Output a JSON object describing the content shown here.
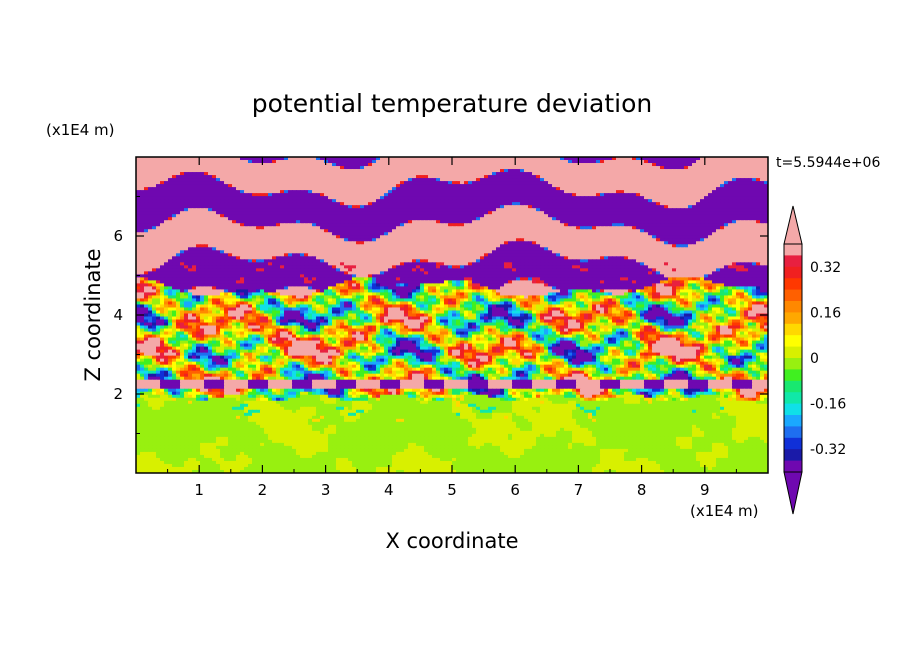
{
  "chart_data": {
    "type": "heatmap",
    "title": "potential temperature deviation",
    "xlabel": "X coordinate",
    "ylabel": "Z coordinate",
    "x_unit": "(x1E4 m)",
    "y_unit": "(x1E4 m)",
    "time_label": "t=5.5944e+06",
    "xlim": [
      0,
      10
    ],
    "ylim": [
      0,
      8
    ],
    "x_ticks": [
      "1",
      "2",
      "3",
      "4",
      "5",
      "6",
      "7",
      "8",
      "9"
    ],
    "y_ticks": [
      "2",
      "4",
      "6"
    ],
    "colorbar": {
      "levels": [
        -0.4,
        -0.36,
        -0.32,
        -0.28,
        -0.24,
        -0.2,
        -0.16,
        -0.12,
        -0.08,
        -0.04,
        0,
        0.04,
        0.08,
        0.12,
        0.16,
        0.2,
        0.24,
        0.28,
        0.32,
        0.36,
        0.4
      ],
      "colors": [
        "#6f08b0",
        "#1a1aa8",
        "#1030d8",
        "#1e6ef0",
        "#1aa8ff",
        "#10e0e8",
        "#10e8a8",
        "#18e870",
        "#40f020",
        "#98f010",
        "#d8f000",
        "#ffff00",
        "#ffd800",
        "#ffa800",
        "#ff8800",
        "#ff6000",
        "#ff3800",
        "#f02020",
        "#e82040",
        "#f4a8a8"
      ],
      "tick_labels": [
        "0.32",
        "0.16",
        "0",
        "-0.16",
        "-0.32"
      ],
      "tick_values": [
        0.32,
        0.16,
        0,
        -0.16,
        -0.32
      ],
      "under_color": "#6f08b0",
      "over_color": "#f4a8a8"
    },
    "regions": [
      {
        "band": "near-surface",
        "z_range": [
          0,
          2
        ],
        "dominant_value": 0.0,
        "colors": [
          "green",
          "lime"
        ]
      },
      {
        "band": "turbulent mixing layer",
        "z_range": [
          2,
          4.6
        ],
        "dominant_value": "mixed",
        "colors": [
          "red",
          "yellow",
          "cyan",
          "blue",
          "purple"
        ]
      },
      {
        "band": "upper layered",
        "z_range": [
          4.6,
          8
        ],
        "dominant_value": "alternating",
        "colors": [
          "purple",
          "pink"
        ]
      }
    ]
  }
}
